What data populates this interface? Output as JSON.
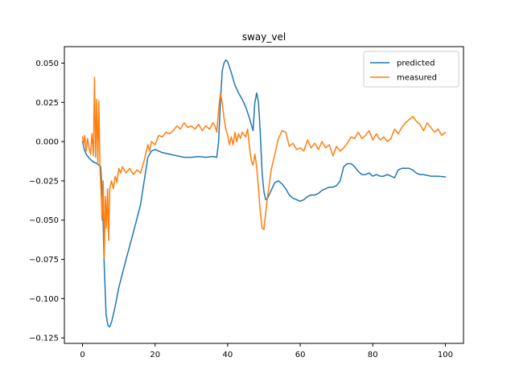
{
  "chart_data": {
    "type": "line",
    "title": "sway_vel",
    "xlabel": "",
    "ylabel": "",
    "xlim": [
      -5,
      105
    ],
    "ylim": [
      -0.1285,
      0.0605
    ],
    "x_ticks": [
      0,
      20,
      40,
      60,
      80,
      100
    ],
    "y_ticks": [
      -0.125,
      -0.1,
      -0.075,
      -0.05,
      -0.025,
      0.0,
      0.025,
      0.05
    ],
    "x_tick_labels": [
      "0",
      "20",
      "40",
      "60",
      "80",
      "100"
    ],
    "y_tick_labels": [
      "−0.125",
      "−0.100",
      "−0.075",
      "−0.050",
      "−0.025",
      "0.000",
      "0.025",
      "0.050"
    ],
    "grid": false,
    "legend_position": "top-right",
    "series": [
      {
        "name": "predicted",
        "color": "#1f77b4",
        "points": [
          [
            0,
            0.0
          ],
          [
            0.5,
            -0.005
          ],
          [
            1,
            -0.008
          ],
          [
            2,
            -0.011
          ],
          [
            3,
            -0.013
          ],
          [
            4,
            -0.014
          ],
          [
            5,
            -0.016
          ],
          [
            5.5,
            -0.035
          ],
          [
            6,
            -0.08
          ],
          [
            6.5,
            -0.11
          ],
          [
            7,
            -0.117
          ],
          [
            7.5,
            -0.118
          ],
          [
            8,
            -0.115
          ],
          [
            9,
            -0.105
          ],
          [
            10,
            -0.093
          ],
          [
            12,
            -0.075
          ],
          [
            14,
            -0.058
          ],
          [
            16,
            -0.04
          ],
          [
            17,
            -0.025
          ],
          [
            18,
            -0.01
          ],
          [
            19,
            -0.006
          ],
          [
            20,
            -0.005
          ],
          [
            22,
            -0.007
          ],
          [
            24,
            -0.008
          ],
          [
            26,
            -0.009
          ],
          [
            28,
            -0.01
          ],
          [
            30,
            -0.01
          ],
          [
            32,
            -0.0095
          ],
          [
            34,
            -0.01
          ],
          [
            36,
            -0.0095
          ],
          [
            37,
            -0.01
          ],
          [
            37.5,
            0.0
          ],
          [
            38,
            0.025
          ],
          [
            38.5,
            0.045
          ],
          [
            39,
            0.05
          ],
          [
            39.5,
            0.052
          ],
          [
            40,
            0.051
          ],
          [
            41,
            0.044
          ],
          [
            42,
            0.036
          ],
          [
            43,
            0.031
          ],
          [
            44,
            0.027
          ],
          [
            45,
            0.022
          ],
          [
            46,
            0.015
          ],
          [
            47,
            0.007
          ],
          [
            47.5,
            0.025
          ],
          [
            48,
            0.031
          ],
          [
            48.5,
            0.025
          ],
          [
            49,
            0.005
          ],
          [
            49.5,
            -0.02
          ],
          [
            50,
            -0.032
          ],
          [
            50.5,
            -0.037
          ],
          [
            51,
            -0.036
          ],
          [
            52,
            -0.031
          ],
          [
            53,
            -0.026
          ],
          [
            54,
            -0.025
          ],
          [
            55,
            -0.027
          ],
          [
            56,
            -0.03
          ],
          [
            57,
            -0.034
          ],
          [
            58,
            -0.036
          ],
          [
            59,
            -0.037
          ],
          [
            60,
            -0.038
          ],
          [
            61,
            -0.037
          ],
          [
            62,
            -0.035
          ],
          [
            63,
            -0.034
          ],
          [
            64,
            -0.034
          ],
          [
            65,
            -0.033
          ],
          [
            66,
            -0.031
          ],
          [
            67,
            -0.03
          ],
          [
            68,
            -0.029
          ],
          [
            69,
            -0.029
          ],
          [
            70,
            -0.028
          ],
          [
            71,
            -0.025
          ],
          [
            72,
            -0.016
          ],
          [
            73,
            -0.014
          ],
          [
            74,
            -0.014
          ],
          [
            75,
            -0.016
          ],
          [
            76,
            -0.019
          ],
          [
            77,
            -0.021
          ],
          [
            78,
            -0.021
          ],
          [
            79,
            -0.02
          ],
          [
            80,
            -0.022
          ],
          [
            81,
            -0.021
          ],
          [
            82,
            -0.022
          ],
          [
            83,
            -0.022
          ],
          [
            84,
            -0.021
          ],
          [
            85,
            -0.022
          ],
          [
            86,
            -0.023
          ],
          [
            87,
            -0.018
          ],
          [
            88,
            -0.017
          ],
          [
            89,
            -0.017
          ],
          [
            90,
            -0.017
          ],
          [
            91,
            -0.018
          ],
          [
            92,
            -0.02
          ],
          [
            93,
            -0.021
          ],
          [
            94,
            -0.021
          ],
          [
            96,
            -0.022
          ],
          [
            98,
            -0.022
          ],
          [
            100,
            -0.0225
          ]
        ]
      },
      {
        "name": "measured",
        "color": "#ff7f0e",
        "points": [
          [
            0,
            0.003
          ],
          [
            0.3,
            -0.002
          ],
          [
            0.6,
            0.004
          ],
          [
            1,
            -0.006
          ],
          [
            1.4,
            0.002
          ],
          [
            1.8,
            -0.004
          ],
          [
            2.2,
            -0.008
          ],
          [
            2.6,
            0.005
          ],
          [
            3,
            -0.009
          ],
          [
            3.3,
            0.041
          ],
          [
            3.6,
            -0.01
          ],
          [
            3.9,
            0.027
          ],
          [
            4.2,
            -0.014
          ],
          [
            4.5,
            0.026
          ],
          [
            4.8,
            -0.017
          ],
          [
            5.1,
            -0.03
          ],
          [
            5.4,
            -0.05
          ],
          [
            5.7,
            -0.025
          ],
          [
            6,
            -0.074
          ],
          [
            6.3,
            -0.035
          ],
          [
            6.6,
            -0.055
          ],
          [
            6.9,
            -0.03
          ],
          [
            7.2,
            -0.063
          ],
          [
            7.5,
            -0.03
          ],
          [
            8,
            -0.025
          ],
          [
            8.5,
            -0.03
          ],
          [
            9,
            -0.022
          ],
          [
            9.5,
            -0.026
          ],
          [
            10,
            -0.017
          ],
          [
            10.5,
            -0.02
          ],
          [
            11,
            -0.016
          ],
          [
            12,
            -0.02
          ],
          [
            13,
            -0.017
          ],
          [
            14,
            -0.021
          ],
          [
            15,
            -0.018
          ],
          [
            16,
            -0.02
          ],
          [
            17,
            -0.012
          ],
          [
            18,
            -0.002
          ],
          [
            18.5,
            -0.006
          ],
          [
            19,
            0.0
          ],
          [
            20,
            -0.002
          ],
          [
            21,
            0.004
          ],
          [
            22,
            0.003
          ],
          [
            23,
            0.006
          ],
          [
            24,
            0.005
          ],
          [
            25,
            0.007
          ],
          [
            26,
            0.01
          ],
          [
            27,
            0.008
          ],
          [
            28,
            0.012
          ],
          [
            29,
            0.009
          ],
          [
            30,
            0.01
          ],
          [
            31,
            0.008
          ],
          [
            32,
            0.011
          ],
          [
            33,
            0.007
          ],
          [
            34,
            0.01
          ],
          [
            35,
            0.008
          ],
          [
            36,
            0.012
          ],
          [
            36.5,
            0.01
          ],
          [
            37,
            0.006
          ],
          [
            37.5,
            0.02
          ],
          [
            38,
            0.031
          ],
          [
            38.5,
            0.025
          ],
          [
            39,
            0.015
          ],
          [
            39.5,
            0.008
          ],
          [
            40,
            0.004
          ],
          [
            40.5,
            -0.002
          ],
          [
            41,
            0.003
          ],
          [
            41.5,
            -0.002
          ],
          [
            42,
            0.006
          ],
          [
            42.5,
            0.0
          ],
          [
            43,
            0.005
          ],
          [
            43.5,
            0.002
          ],
          [
            44,
            0.006
          ],
          [
            45,
            0.003
          ],
          [
            45.5,
            0.008
          ],
          [
            46,
            -0.003
          ],
          [
            46.5,
            -0.012
          ],
          [
            47,
            -0.015
          ],
          [
            47.5,
            -0.008
          ],
          [
            48,
            -0.016
          ],
          [
            48.5,
            -0.03
          ],
          [
            49,
            -0.045
          ],
          [
            49.5,
            -0.055
          ],
          [
            50,
            -0.056
          ],
          [
            50.5,
            -0.045
          ],
          [
            51,
            -0.035
          ],
          [
            52,
            -0.018
          ],
          [
            53,
            -0.008
          ],
          [
            54,
            0.002
          ],
          [
            55,
            0.007
          ],
          [
            56,
            0.006
          ],
          [
            57,
            -0.003
          ],
          [
            58,
            -0.001
          ],
          [
            59,
            -0.005
          ],
          [
            60,
            -0.004
          ],
          [
            61,
            -0.006
          ],
          [
            62,
            0.001
          ],
          [
            63,
            -0.004
          ],
          [
            64,
            -0.001
          ],
          [
            65,
            -0.005
          ],
          [
            66,
            0.0
          ],
          [
            67,
            -0.004
          ],
          [
            68,
            -0.002
          ],
          [
            69,
            -0.009
          ],
          [
            70,
            -0.003
          ],
          [
            71,
            -0.006
          ],
          [
            72,
            -0.004
          ],
          [
            73,
            -0.001
          ],
          [
            74,
            0.003
          ],
          [
            75,
            0.002
          ],
          [
            76,
            0.006
          ],
          [
            77,
            0.002
          ],
          [
            78,
            0.004
          ],
          [
            79,
            0.007
          ],
          [
            80,
            0.001
          ],
          [
            81,
            0.005
          ],
          [
            82,
            0.001
          ],
          [
            83,
            0.003
          ],
          [
            84,
            0.0
          ],
          [
            85,
            0.002
          ],
          [
            86,
            0.008
          ],
          [
            87,
            0.005
          ],
          [
            88,
            0.009
          ],
          [
            89,
            0.012
          ],
          [
            90,
            0.014
          ],
          [
            91,
            0.016
          ],
          [
            92,
            0.013
          ],
          [
            93,
            0.011
          ],
          [
            94,
            0.007
          ],
          [
            95,
            0.012
          ],
          [
            96,
            0.009
          ],
          [
            97,
            0.006
          ],
          [
            98,
            0.008
          ],
          [
            99,
            0.004
          ],
          [
            100,
            0.006
          ]
        ]
      }
    ]
  }
}
